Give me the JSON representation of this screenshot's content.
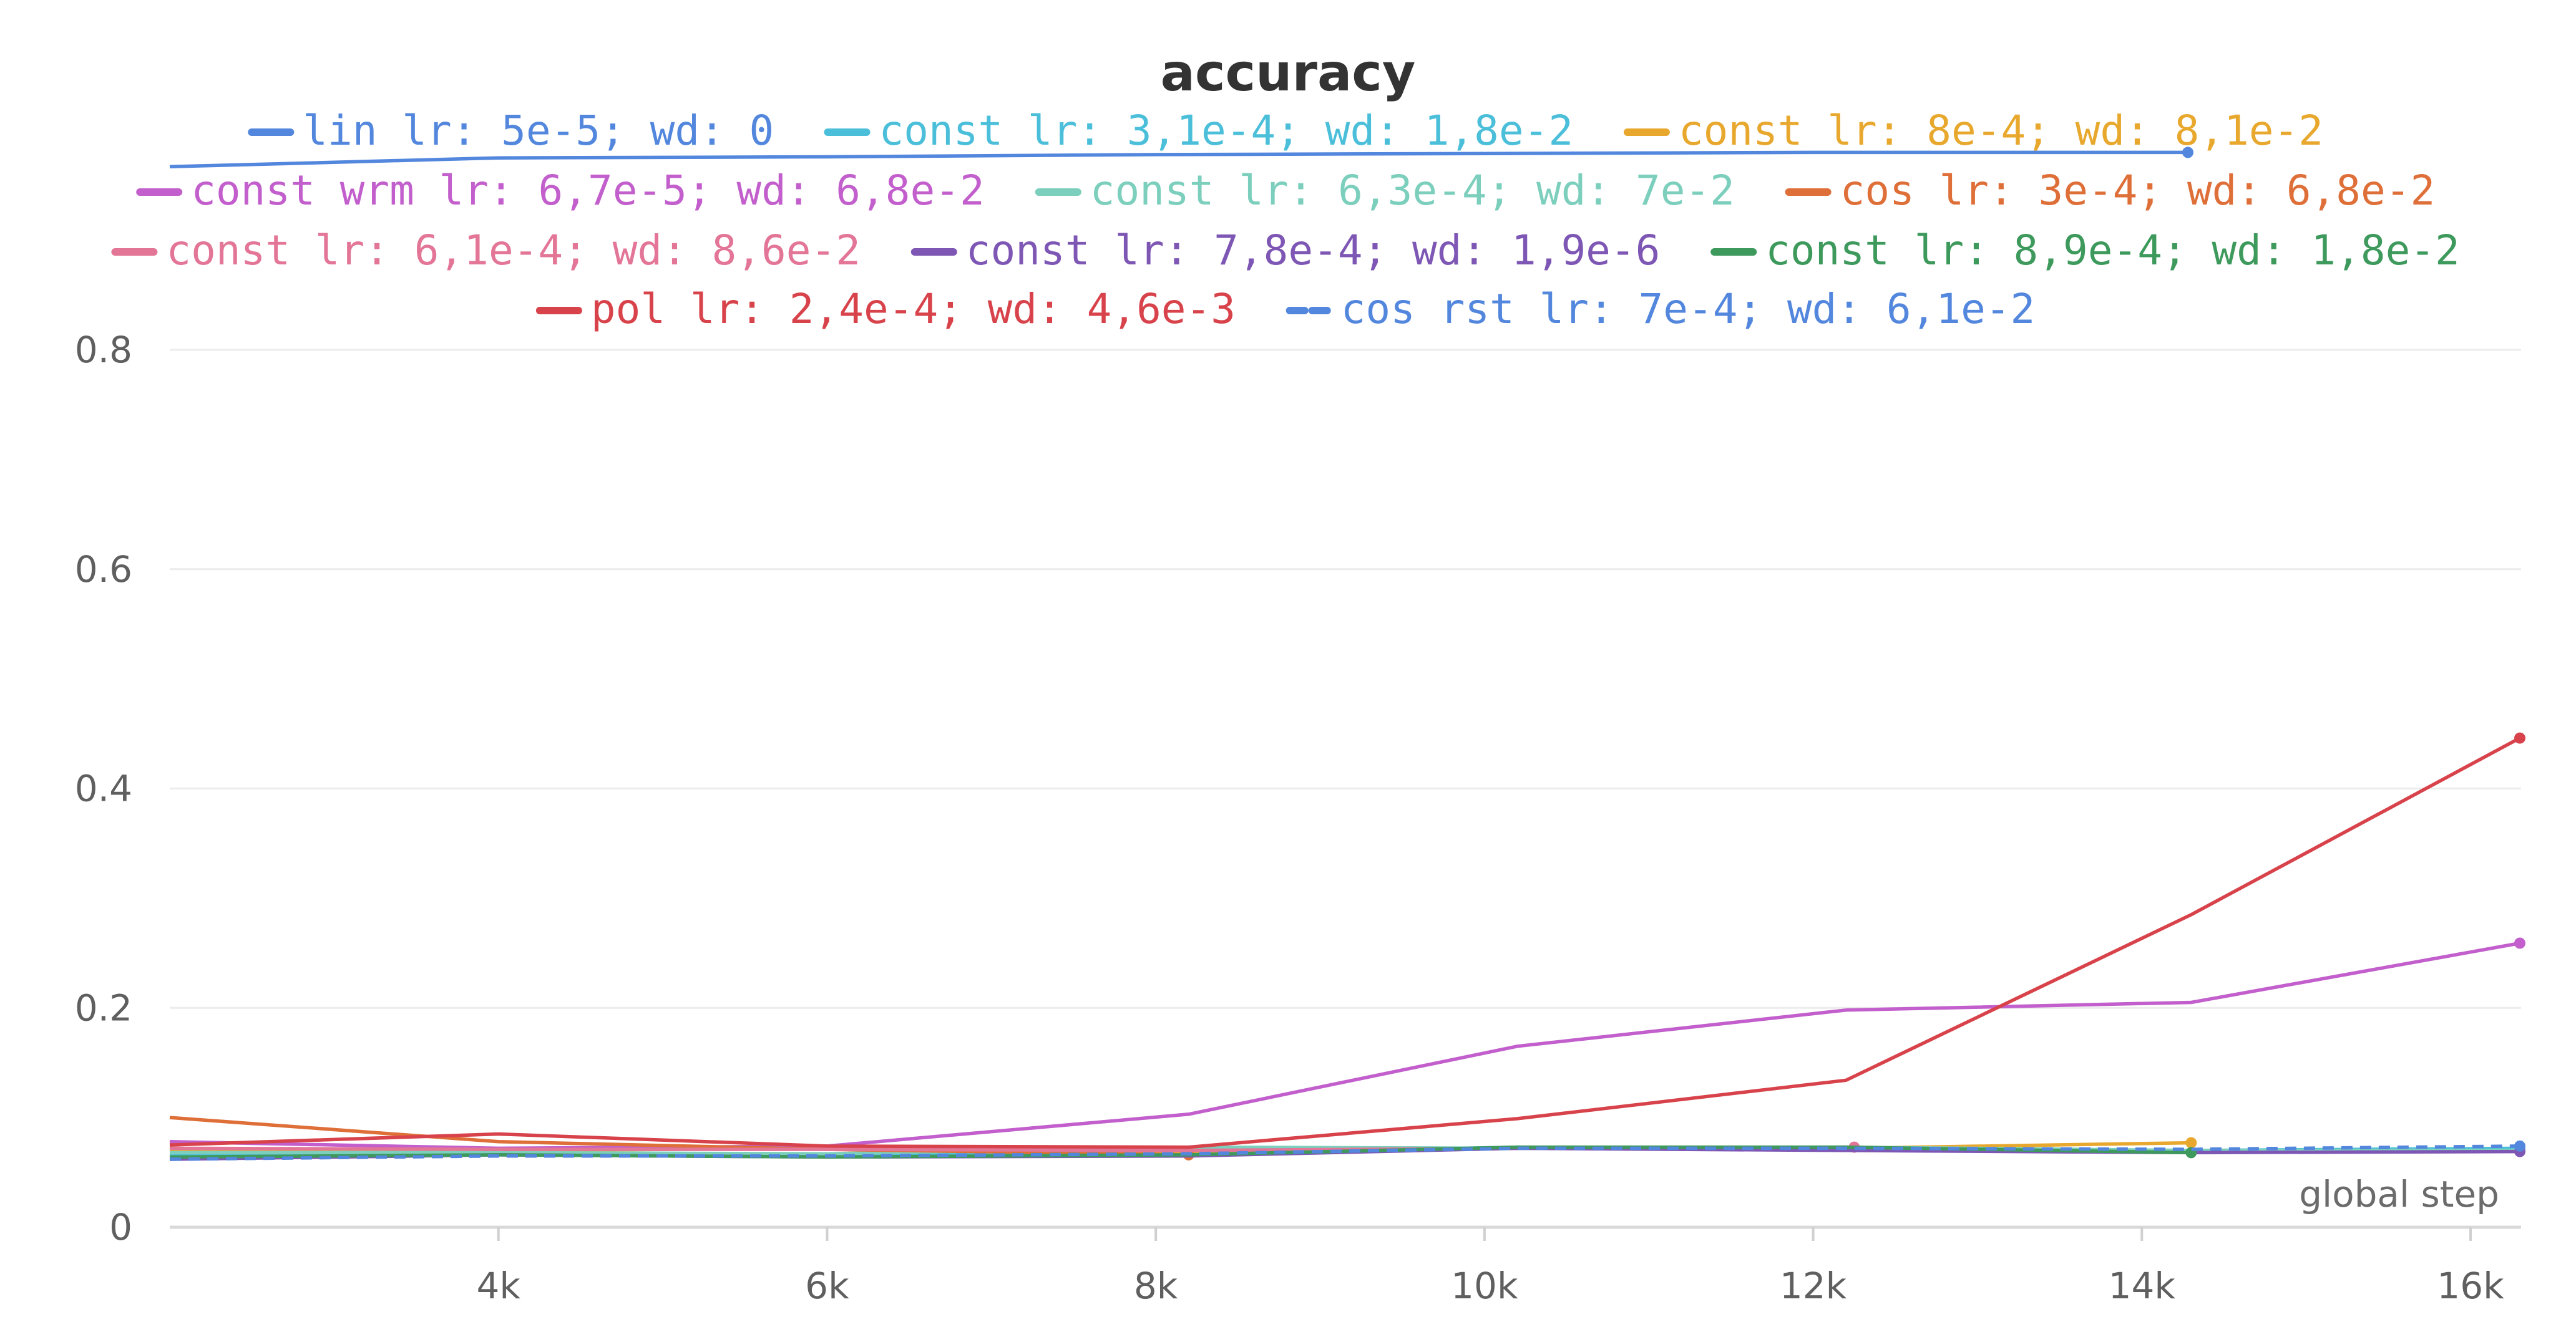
{
  "chart_data": {
    "type": "line",
    "title": "accuracy",
    "xlabel": "global step",
    "ylabel": "",
    "xlim": [
      2000,
      16300
    ],
    "ylim": [
      0,
      1.0
    ],
    "grid": true,
    "legend": "top",
    "x_ticks": [
      {
        "value": 4000,
        "label": "4k"
      },
      {
        "value": 6000,
        "label": "6k"
      },
      {
        "value": 8000,
        "label": "8k"
      },
      {
        "value": 10000,
        "label": "10k"
      },
      {
        "value": 12000,
        "label": "12k"
      },
      {
        "value": 14000,
        "label": "14k"
      },
      {
        "value": 16000,
        "label": "16k"
      }
    ],
    "y_ticks": [
      {
        "value": 0,
        "label": "0"
      },
      {
        "value": 0.2,
        "label": "0.2"
      },
      {
        "value": 0.4,
        "label": "0.4"
      },
      {
        "value": 0.6,
        "label": "0.6"
      },
      {
        "value": 0.8,
        "label": "0.8"
      }
    ],
    "series": [
      {
        "name": "lin lr: 5e-5; wd: 0",
        "color": "#5387dd",
        "dashed": false,
        "points": [
          [
            2000,
            0.967
          ],
          [
            4000,
            0.975
          ],
          [
            6000,
            0.976
          ],
          [
            8000,
            0.978
          ],
          [
            10000,
            0.979
          ],
          [
            12000,
            0.98
          ],
          [
            14280,
            0.98
          ]
        ]
      },
      {
        "name": "const lr: 3,1e-4; wd: 1,8e-2",
        "color": "#4bbfda",
        "dashed": false,
        "points": [
          [
            2000,
            0.065
          ],
          [
            4000,
            0.068
          ],
          [
            6000,
            0.066
          ],
          [
            8200,
            0.067
          ],
          [
            10200,
            0.073
          ],
          [
            12200,
            0.072
          ],
          [
            14300,
            0.07
          ],
          [
            16300,
            0.072
          ]
        ]
      },
      {
        "name": "const lr: 8e-4; wd: 8,1e-2",
        "color": "#e8a82e",
        "dashed": false,
        "points": [
          [
            2000,
            0.07
          ],
          [
            4000,
            0.07
          ],
          [
            6000,
            0.072
          ],
          [
            8200,
            0.068
          ],
          [
            10200,
            0.072
          ],
          [
            12200,
            0.072
          ],
          [
            14300,
            0.077
          ]
        ]
      },
      {
        "name": "const wrm lr: 6,7e-5; wd: 6,8e-2",
        "color": "#c25fcc",
        "dashed": false,
        "points": [
          [
            2000,
            0.078
          ],
          [
            4000,
            0.072
          ],
          [
            6000,
            0.074
          ],
          [
            8200,
            0.103
          ],
          [
            10200,
            0.165
          ],
          [
            12200,
            0.198
          ],
          [
            14300,
            0.205
          ],
          [
            16300,
            0.259
          ]
        ]
      },
      {
        "name": "const lr: 6,3e-4; wd: 7e-2",
        "color": "#7ccfbc",
        "dashed": false,
        "points": [
          [
            2000,
            0.068
          ],
          [
            4000,
            0.068
          ],
          [
            6000,
            0.067
          ],
          [
            8200,
            0.073
          ],
          [
            10200,
            0.072
          ],
          [
            12200,
            0.073
          ],
          [
            14300,
            0.07
          ],
          [
            16300,
            0.07
          ]
        ]
      },
      {
        "name": "cos lr: 3e-4; wd: 6,8e-2",
        "color": "#df6f39",
        "dashed": false,
        "points": [
          [
            2000,
            0.1
          ],
          [
            4000,
            0.078
          ],
          [
            6000,
            0.071
          ],
          [
            8200,
            0.066
          ]
        ]
      },
      {
        "name": "const lr: 6,1e-4; wd: 8,6e-2",
        "color": "#e37597",
        "dashed": false,
        "points": [
          [
            2000,
            0.072
          ],
          [
            4000,
            0.071
          ],
          [
            6000,
            0.071
          ],
          [
            8200,
            0.07
          ],
          [
            10200,
            0.072
          ],
          [
            12250,
            0.073
          ]
        ]
      },
      {
        "name": "const lr: 7,8e-4; wd: 1,9e-6",
        "color": "#7e57b5",
        "dashed": false,
        "points": [
          [
            2000,
            0.062
          ],
          [
            4000,
            0.066
          ],
          [
            6000,
            0.064
          ],
          [
            8200,
            0.065
          ],
          [
            10200,
            0.072
          ],
          [
            12200,
            0.07
          ],
          [
            14300,
            0.068
          ],
          [
            16300,
            0.069
          ]
        ]
      },
      {
        "name": "const lr: 8,9e-4; wd: 1,8e-2",
        "color": "#3e9a5c",
        "dashed": false,
        "points": [
          [
            2000,
            0.064
          ],
          [
            4000,
            0.066
          ],
          [
            6000,
            0.064
          ],
          [
            8200,
            0.066
          ],
          [
            10200,
            0.073
          ],
          [
            12200,
            0.073
          ],
          [
            14300,
            0.068
          ]
        ]
      },
      {
        "name": "pol lr: 2,4e-4; wd: 4,6e-3",
        "color": "#d8434b",
        "dashed": false,
        "points": [
          [
            2000,
            0.075
          ],
          [
            4000,
            0.085
          ],
          [
            6000,
            0.074
          ],
          [
            8200,
            0.073
          ],
          [
            10200,
            0.099
          ],
          [
            12200,
            0.134
          ],
          [
            14300,
            0.285
          ],
          [
            16300,
            0.446
          ]
        ]
      },
      {
        "name": "cos rst lr: 7e-4; wd: 6,1e-2",
        "color": "#5387dd",
        "dashed": true,
        "points": [
          [
            2000,
            0.062
          ],
          [
            4000,
            0.065
          ],
          [
            6000,
            0.065
          ],
          [
            8200,
            0.067
          ],
          [
            10200,
            0.072
          ],
          [
            12200,
            0.072
          ],
          [
            14300,
            0.071
          ],
          [
            16300,
            0.074
          ]
        ]
      }
    ]
  }
}
